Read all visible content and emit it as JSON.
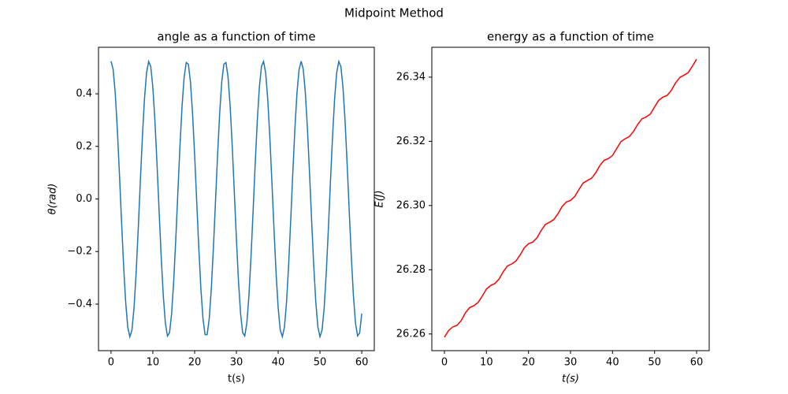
{
  "title": "Midpoint Method",
  "chart_data": [
    {
      "type": "line",
      "title": "angle as a function of time",
      "xlabel": "t(s)",
      "ylabel": "θ(rad)",
      "color": "#1f77b4",
      "xlim": [
        -3,
        63
      ],
      "ylim": [
        -0.577,
        0.577
      ],
      "grid": false,
      "xticks": [
        0,
        10,
        20,
        30,
        40,
        50,
        60
      ],
      "yticks": [
        {
          "value": -0.4,
          "label": "−0.4"
        },
        {
          "value": -0.2,
          "label": "−0.2"
        },
        {
          "value": 0,
          "label": "0.0"
        },
        0.2,
        0.4
      ],
      "x": [
        0,
        0.5,
        1,
        1.5,
        2,
        2.5,
        3,
        3.5,
        4,
        4.5,
        5,
        5.5,
        6,
        6.5,
        7,
        7.5,
        8,
        8.5,
        9,
        9.5,
        10,
        10.5,
        11,
        11.5,
        12,
        12.5,
        13,
        13.5,
        14,
        14.5,
        15,
        15.5,
        16,
        16.5,
        17,
        17.5,
        18,
        18.5,
        19,
        19.5,
        20,
        20.5,
        21,
        21.5,
        22,
        22.5,
        23,
        23.5,
        24,
        24.5,
        25,
        25.5,
        26,
        26.5,
        27,
        27.5,
        28,
        28.5,
        29,
        29.5,
        30,
        30.5,
        31,
        31.5,
        32,
        32.5,
        33,
        33.5,
        34,
        34.5,
        35,
        35.5,
        36,
        36.5,
        37,
        37.5,
        38,
        38.5,
        39,
        39.5,
        40,
        40.5,
        41,
        41.5,
        42,
        42.5,
        43,
        43.5,
        44,
        44.5,
        45,
        45.5,
        46,
        46.5,
        47,
        47.5,
        48,
        48.5,
        49,
        49.5,
        50,
        50.5,
        51,
        51.5,
        52,
        52.5,
        53,
        53.5,
        54,
        54.5,
        55,
        55.5,
        56,
        56.5,
        57,
        57.5,
        58,
        58.5,
        59,
        59.5,
        60
      ],
      "values": [
        0.524,
        0.493,
        0.404,
        0.267,
        0.099,
        -0.081,
        -0.251,
        -0.392,
        -0.487,
        -0.524,
        -0.499,
        -0.415,
        -0.283,
        -0.117,
        0.063,
        0.235,
        0.38,
        0.48,
        0.523,
        0.504,
        0.426,
        0.298,
        0.134,
        -0.045,
        -0.219,
        -0.367,
        -0.472,
        -0.521,
        -0.509,
        -0.436,
        -0.312,
        -0.152,
        0.027,
        0.203,
        0.354,
        0.464,
        0.519,
        0.513,
        0.446,
        0.327,
        0.169,
        -0.009,
        -0.186,
        -0.341,
        -0.455,
        -0.516,
        -0.516,
        -0.455,
        -0.341,
        -0.186,
        -0.009,
        0.169,
        0.327,
        0.446,
        0.513,
        0.519,
        0.464,
        0.354,
        0.203,
        0.027,
        -0.152,
        -0.312,
        -0.436,
        -0.509,
        -0.521,
        -0.472,
        -0.367,
        -0.219,
        -0.045,
        0.134,
        0.298,
        0.426,
        0.504,
        0.523,
        0.48,
        0.38,
        0.235,
        0.063,
        -0.117,
        -0.283,
        -0.415,
        -0.499,
        -0.524,
        -0.487,
        -0.392,
        -0.251,
        -0.081,
        0.099,
        0.267,
        0.404,
        0.493,
        0.524,
        0.493,
        0.404,
        0.267,
        0.099,
        -0.081,
        -0.251,
        -0.392,
        -0.487,
        -0.524,
        -0.499,
        -0.415,
        -0.283,
        -0.117,
        0.063,
        0.235,
        0.38,
        0.48,
        0.523,
        0.504,
        0.426,
        0.298,
        0.134,
        -0.045,
        -0.219,
        -0.367,
        -0.472,
        -0.521,
        -0.509,
        -0.436
      ]
    },
    {
      "type": "line",
      "title": "energy as a function of time",
      "xlabel": "t(s)",
      "ylabel": "E(J)",
      "color": "#ff0000",
      "xlim": [
        -3,
        63
      ],
      "ylim": [
        26.2548,
        26.3493
      ],
      "grid": false,
      "xticks": [
        0,
        10,
        20,
        30,
        40,
        50,
        60
      ],
      "yticks": [
        26.26,
        26.28,
        {
          "value": 26.3,
          "label": "26.30"
        },
        26.32,
        26.34
      ],
      "x": [
        0,
        1,
        2,
        3,
        4,
        5,
        6,
        7,
        8,
        9,
        10,
        11,
        12,
        13,
        14,
        15,
        16,
        17,
        18,
        19,
        20,
        21,
        22,
        23,
        24,
        25,
        26,
        27,
        28,
        29,
        30,
        31,
        32,
        33,
        34,
        35,
        36,
        37,
        38,
        39,
        40,
        41,
        42,
        43,
        44,
        45,
        46,
        47,
        48,
        49,
        50,
        51,
        52,
        53,
        54,
        55,
        56,
        57,
        58,
        59,
        60
      ],
      "values": [
        26.259,
        26.2611,
        26.2622,
        26.2627,
        26.2642,
        26.2666,
        26.2682,
        26.2688,
        26.2698,
        26.2718,
        26.274,
        26.2751,
        26.2757,
        26.2771,
        26.2794,
        26.2812,
        26.2818,
        26.2827,
        26.2846,
        26.2868,
        26.2881,
        26.2886,
        26.2899,
        26.2922,
        26.2941,
        26.2948,
        26.2956,
        26.2974,
        26.2997,
        26.3011,
        26.3016,
        26.3028,
        26.305,
        26.307,
        26.3078,
        26.3085,
        26.3102,
        26.3125,
        26.3141,
        26.3146,
        26.3156,
        26.3178,
        26.3199,
        26.3208,
        26.3215,
        26.3231,
        26.3253,
        26.327,
        26.3276,
        26.3285,
        26.3307,
        26.3328,
        26.3338,
        26.3343,
        26.3359,
        26.3382,
        26.3399,
        26.3406,
        26.3414,
        26.3434,
        26.3456
      ]
    }
  ]
}
